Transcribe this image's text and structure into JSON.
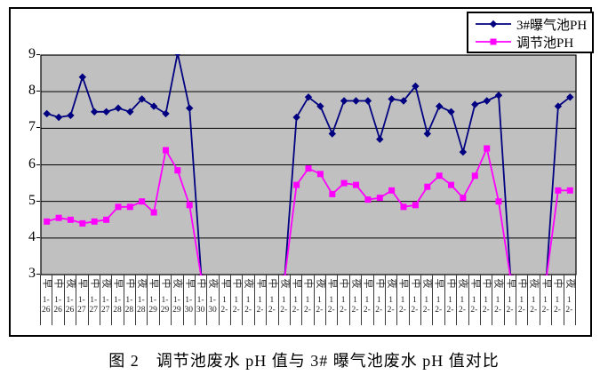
{
  "figure": {
    "caption": "图 2　调节池废水 pH 值与 3# 曝气池废水 pH 值对比"
  },
  "chart_data": {
    "type": "line",
    "title": "",
    "xlabel": "",
    "ylabel": "",
    "legend_position": "top-right",
    "grid": "horizontal",
    "plot_bg_color": "#c0c0c0",
    "grid_color": "#000000",
    "y_axis": {
      "min": 3,
      "max": 9,
      "step": 1,
      "tick_labels": [
        "9",
        "8",
        "7",
        "6",
        "5",
        "4",
        "3"
      ]
    },
    "x_axis_note": "45 categories = 3 shifts (早/中/夜) per day; dates 1-26..1-30 then February columns shown truncated as '1' / '2-'",
    "categories": [
      {
        "shift": "早",
        "d1": "1-",
        "d2": "26"
      },
      {
        "shift": "中",
        "d1": "1-",
        "d2": "26"
      },
      {
        "shift": "夜",
        "d1": "1-",
        "d2": "26"
      },
      {
        "shift": "早",
        "d1": "1-",
        "d2": "27"
      },
      {
        "shift": "中",
        "d1": "1-",
        "d2": "27"
      },
      {
        "shift": "夜",
        "d1": "1-",
        "d2": "27"
      },
      {
        "shift": "早",
        "d1": "1-",
        "d2": "28"
      },
      {
        "shift": "中",
        "d1": "1-",
        "d2": "28"
      },
      {
        "shift": "夜",
        "d1": "1-",
        "d2": "28"
      },
      {
        "shift": "早",
        "d1": "1-",
        "d2": "29"
      },
      {
        "shift": "中",
        "d1": "1-",
        "d2": "29"
      },
      {
        "shift": "夜",
        "d1": "1-",
        "d2": "29"
      },
      {
        "shift": "早",
        "d1": "1-",
        "d2": "30"
      },
      {
        "shift": "中",
        "d1": "1-",
        "d2": "30"
      },
      {
        "shift": "夜",
        "d1": "1-",
        "d2": "30"
      },
      {
        "shift": "早",
        "d1": "1",
        "d2": "2-"
      },
      {
        "shift": "中",
        "d1": "1",
        "d2": "2-"
      },
      {
        "shift": "夜",
        "d1": "1",
        "d2": "2-"
      },
      {
        "shift": "早",
        "d1": "1",
        "d2": "2-"
      },
      {
        "shift": "中",
        "d1": "1",
        "d2": "2-"
      },
      {
        "shift": "夜",
        "d1": "1",
        "d2": "2-"
      },
      {
        "shift": "早",
        "d1": "1",
        "d2": "2-"
      },
      {
        "shift": "中",
        "d1": "1",
        "d2": "2-"
      },
      {
        "shift": "夜",
        "d1": "1",
        "d2": "2-"
      },
      {
        "shift": "早",
        "d1": "1",
        "d2": "2-"
      },
      {
        "shift": "中",
        "d1": "1",
        "d2": "2-"
      },
      {
        "shift": "夜",
        "d1": "1",
        "d2": "2-"
      },
      {
        "shift": "早",
        "d1": "1",
        "d2": "2-"
      },
      {
        "shift": "中",
        "d1": "1",
        "d2": "2-"
      },
      {
        "shift": "夜",
        "d1": "1",
        "d2": "2-"
      },
      {
        "shift": "早",
        "d1": "1",
        "d2": "2-"
      },
      {
        "shift": "中",
        "d1": "1",
        "d2": "2-"
      },
      {
        "shift": "夜",
        "d1": "1",
        "d2": "2-"
      },
      {
        "shift": "早",
        "d1": "1",
        "d2": "2-"
      },
      {
        "shift": "中",
        "d1": "1",
        "d2": "2-"
      },
      {
        "shift": "夜",
        "d1": "1",
        "d2": "2-"
      },
      {
        "shift": "早",
        "d1": "1",
        "d2": "2-"
      },
      {
        "shift": "中",
        "d1": "1",
        "d2": "2-"
      },
      {
        "shift": "夜",
        "d1": "1",
        "d2": "2-"
      },
      {
        "shift": "早",
        "d1": "1",
        "d2": "2-"
      },
      {
        "shift": "中",
        "d1": "1",
        "d2": "2-"
      },
      {
        "shift": "夜",
        "d1": "1",
        "d2": "2-"
      },
      {
        "shift": "早",
        "d1": "1",
        "d2": "2-"
      },
      {
        "shift": "中",
        "d1": "1",
        "d2": "2-"
      },
      {
        "shift": "夜",
        "d1": "1",
        "d2": "2-"
      }
    ],
    "series": [
      {
        "name": "3#曝气池PH",
        "color": "#000080",
        "marker": "diamond",
        "values": [
          7.4,
          7.3,
          7.35,
          8.4,
          7.45,
          7.45,
          7.55,
          7.45,
          7.8,
          7.6,
          7.4,
          9.05,
          7.55,
          2.9,
          null,
          null,
          null,
          null,
          null,
          null,
          2.9,
          7.3,
          7.85,
          7.6,
          6.85,
          7.75,
          7.75,
          7.75,
          6.7,
          7.8,
          7.75,
          8.15,
          6.85,
          7.6,
          7.45,
          6.35,
          7.65,
          7.75,
          7.9,
          2.9,
          null,
          null,
          2.9,
          7.6,
          7.85
        ]
      },
      {
        "name": "调节池PH",
        "color": "#ff00ff",
        "marker": "square",
        "values": [
          4.45,
          4.55,
          4.5,
          4.4,
          4.45,
          4.5,
          4.85,
          4.85,
          5.0,
          4.7,
          6.4,
          5.85,
          4.9,
          2.9,
          null,
          null,
          null,
          null,
          null,
          null,
          2.9,
          5.45,
          5.9,
          5.75,
          5.2,
          5.5,
          5.45,
          5.05,
          5.1,
          5.3,
          4.85,
          4.9,
          5.4,
          5.7,
          5.45,
          5.1,
          5.7,
          6.45,
          5.0,
          2.9,
          null,
          null,
          2.9,
          5.3,
          5.3
        ]
      }
    ]
  }
}
